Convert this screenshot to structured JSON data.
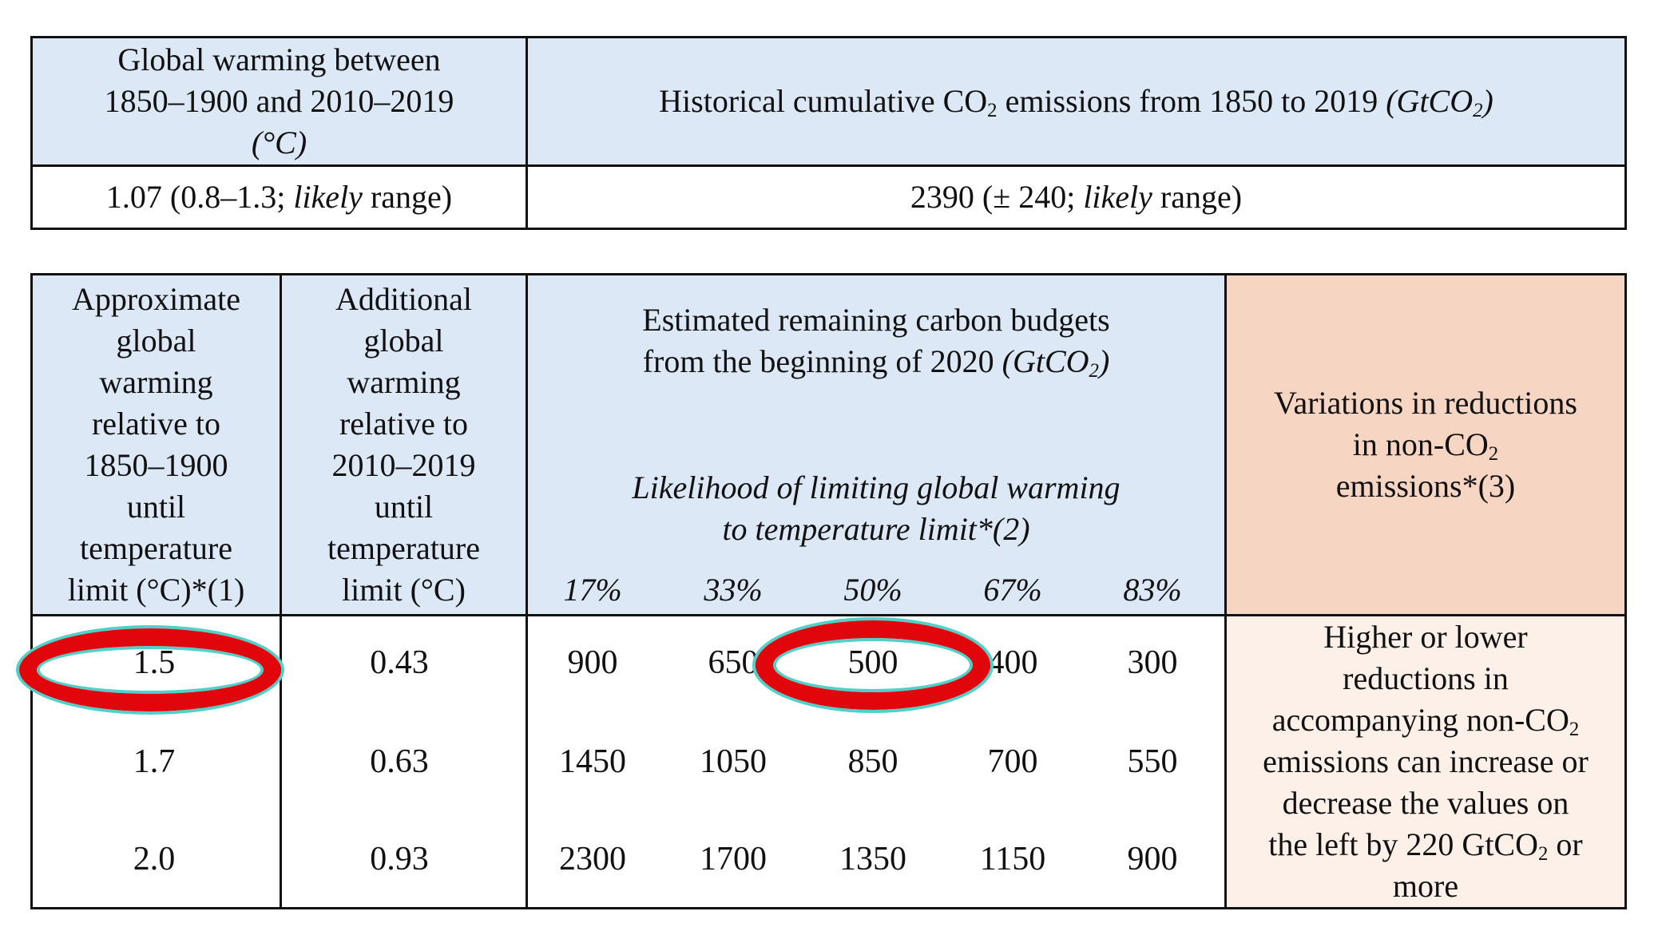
{
  "top_table": {
    "header_left": [
      "Global warming between",
      "1850–1900 and 2010–2019",
      "(°C)"
    ],
    "header_right_prefix": "Historical cumulative CO",
    "header_right_sub": "2",
    "header_right_mid": " emissions from 1850 to 2019 ",
    "header_right_unit": "(GtCO",
    "header_right_unit_sub": "2",
    "header_right_unit_end": ")",
    "value_left_pre": "1.07 (0.8–1.3; ",
    "value_left_italic": "likely",
    "value_left_post": " range)",
    "value_right_pre": "2390 (± 240; ",
    "value_right_italic": "likely",
    "value_right_post": " range)"
  },
  "main_table": {
    "col1_header": [
      "Approximate",
      "global",
      "warming",
      "relative to",
      "1850–1900",
      "until",
      "temperature",
      "limit (°C)*(1)"
    ],
    "col2_header": [
      "Additional",
      "global",
      "warming",
      "relative to",
      "2010–2019",
      "until",
      "temperature",
      "limit (°C)"
    ],
    "budget_header_line1": "Estimated remaining carbon budgets",
    "budget_header_line2_pre": "from the beginning of 2020 ",
    "budget_header_line2_unit": "(GtCO",
    "budget_header_line2_sub": "2",
    "budget_header_line2_end": ")",
    "likelihood_line1": "Likelihood of limiting global warming",
    "likelihood_line2": "to temperature limit*(2)",
    "percentages": [
      "17%",
      "33%",
      "50%",
      "67%",
      "83%"
    ],
    "variations_header_line1": "Variations in reductions",
    "variations_header_line2_pre": "in non-CO",
    "variations_header_line2_sub": "2",
    "variations_header_line3": "emissions*(3)",
    "rows": [
      {
        "limit": "1.5",
        "additional": "0.43",
        "budgets": [
          "900",
          "650",
          "500",
          "400",
          "300"
        ]
      },
      {
        "limit": "1.7",
        "additional": "0.63",
        "budgets": [
          "1450",
          "1050",
          "850",
          "700",
          "550"
        ]
      },
      {
        "limit": "2.0",
        "additional": "0.93",
        "budgets": [
          "2300",
          "1700",
          "1350",
          "1150",
          "900"
        ]
      }
    ],
    "variations_text_l1": "Higher or lower",
    "variations_text_l2": "reductions in",
    "variations_text_l3_pre": "accompanying non-CO",
    "variations_text_l3_sub": "2",
    "variations_text_l4": "emissions can increase or",
    "variations_text_l5": "decrease the values on",
    "variations_text_l6_pre": "the left by 220 GtCO",
    "variations_text_l6_sub": "2",
    "variations_text_l6_post": " or",
    "variations_text_l7": "more"
  },
  "annotations": {
    "ring_color": "#e1060b",
    "ring_outline_color": "#4fd0c8",
    "circled_values": [
      "1.5",
      "500"
    ]
  }
}
